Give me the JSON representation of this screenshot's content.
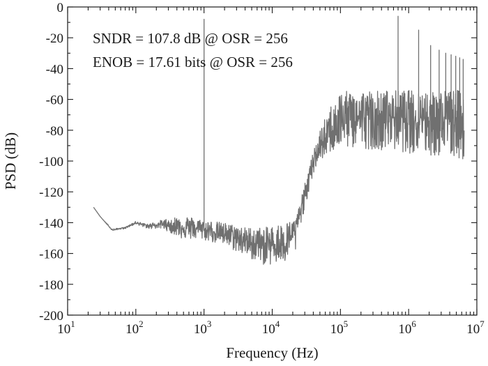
{
  "chart_data": {
    "type": "line",
    "xlabel": "Frequency (Hz)",
    "ylabel": "PSD (dB)",
    "x_scale": "log",
    "xlim": [
      10,
      10000000
    ],
    "ylim": [
      -200,
      0
    ],
    "x_ticks": [
      {
        "value": 10,
        "base": "10",
        "exp": "1"
      },
      {
        "value": 100,
        "base": "10",
        "exp": "2"
      },
      {
        "value": 1000,
        "base": "10",
        "exp": "3"
      },
      {
        "value": 10000,
        "base": "10",
        "exp": "4"
      },
      {
        "value": 100000,
        "base": "10",
        "exp": "5"
      },
      {
        "value": 1000000,
        "base": "10",
        "exp": "6"
      },
      {
        "value": 10000000,
        "base": "10",
        "exp": "7"
      }
    ],
    "y_ticks": [
      "0",
      "-20",
      "-40",
      "-60",
      "-80",
      "-100",
      "-120",
      "-140",
      "-160",
      "-180",
      "-200"
    ],
    "annotations": [
      "SNDR = 107.8 dB @ OSR = 256",
      "ENOB = 17.61 bits @ OSR = 256"
    ],
    "grid": false,
    "series": [
      {
        "color": "#707070",
        "noise_floor_envelope": [
          [
            24,
            -130
          ],
          [
            30,
            -136
          ],
          [
            45,
            -145
          ],
          [
            70,
            -143
          ],
          [
            100,
            -140
          ],
          [
            150,
            -142
          ],
          [
            250,
            -141
          ],
          [
            500,
            -143
          ],
          [
            900,
            -144
          ],
          [
            2000,
            -147
          ],
          [
            4000,
            -152
          ],
          [
            8000,
            -155
          ],
          [
            15000,
            -153
          ],
          [
            22000,
            -145
          ],
          [
            30000,
            -120
          ],
          [
            45000,
            -95
          ],
          [
            70000,
            -80
          ],
          [
            100000,
            -74
          ],
          [
            200000,
            -72
          ],
          [
            500000,
            -71
          ],
          [
            1000000,
            -71
          ],
          [
            3000000,
            -71
          ],
          [
            6500000,
            -71
          ]
        ],
        "peak_envelope": [
          [
            24,
            -130
          ],
          [
            30,
            -136
          ],
          [
            45,
            -144
          ],
          [
            70,
            -143
          ],
          [
            100,
            -139
          ],
          [
            150,
            -141
          ],
          [
            250,
            -138
          ],
          [
            500,
            -135
          ],
          [
            900,
            -138
          ],
          [
            2000,
            -140
          ],
          [
            4000,
            -143
          ],
          [
            8000,
            -143
          ],
          [
            15000,
            -140
          ],
          [
            22000,
            -138
          ],
          [
            30000,
            -115
          ],
          [
            45000,
            -85
          ],
          [
            70000,
            -65
          ],
          [
            100000,
            -55
          ],
          [
            200000,
            -54
          ],
          [
            500000,
            -54
          ],
          [
            1000000,
            -54
          ],
          [
            3000000,
            -54
          ],
          [
            6500000,
            -54
          ]
        ],
        "trough_envelope": [
          [
            24,
            -130
          ],
          [
            30,
            -136
          ],
          [
            45,
            -145
          ],
          [
            70,
            -144
          ],
          [
            100,
            -141
          ],
          [
            150,
            -144
          ],
          [
            250,
            -144
          ],
          [
            500,
            -151
          ],
          [
            900,
            -151
          ],
          [
            2000,
            -155
          ],
          [
            4000,
            -162
          ],
          [
            8000,
            -168
          ],
          [
            15000,
            -167
          ],
          [
            22000,
            -160
          ],
          [
            30000,
            -130
          ],
          [
            45000,
            -102
          ],
          [
            70000,
            -95
          ],
          [
            100000,
            -92
          ],
          [
            200000,
            -92
          ],
          [
            500000,
            -93
          ],
          [
            1000000,
            -95
          ],
          [
            3000000,
            -98
          ],
          [
            6500000,
            -100
          ]
        ],
        "spurs": [
          {
            "x": 1000,
            "y": -8
          },
          {
            "x": 700000,
            "y": -6
          },
          {
            "x": 1400000,
            "y": -15
          },
          {
            "x": 2100000,
            "y": -25
          },
          {
            "x": 2800000,
            "y": -28
          },
          {
            "x": 3500000,
            "y": -30
          },
          {
            "x": 4200000,
            "y": -31
          },
          {
            "x": 4900000,
            "y": -32
          },
          {
            "x": 5600000,
            "y": -33
          },
          {
            "x": 6300000,
            "y": -34
          }
        ]
      }
    ]
  }
}
